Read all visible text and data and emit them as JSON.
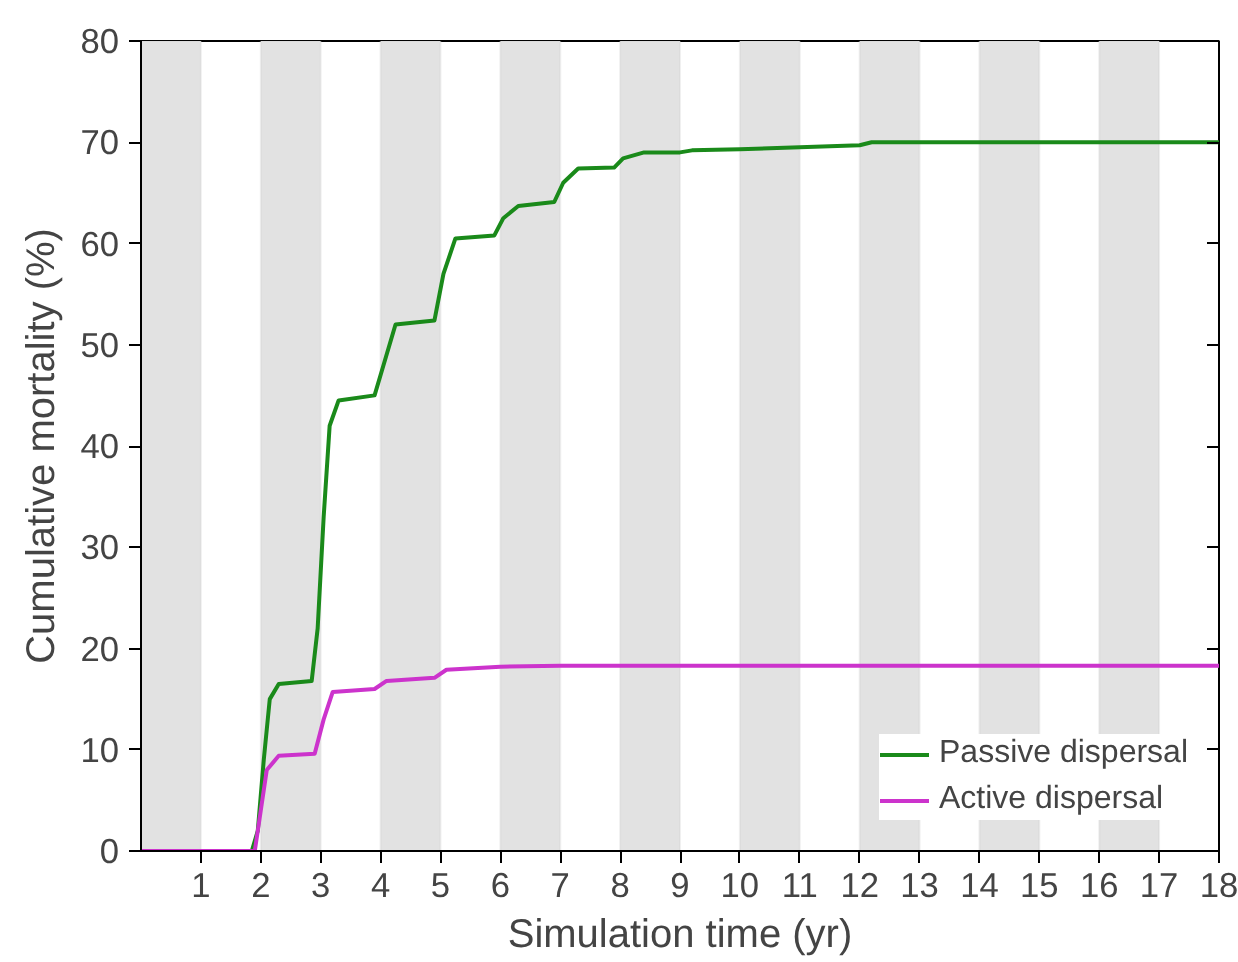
{
  "chart_data": {
    "type": "line",
    "xlabel": "Simulation time (yr)",
    "ylabel": "Cumulative mortality (%)",
    "xlim": [
      0,
      18
    ],
    "xticks": [
      1,
      2,
      3,
      4,
      5,
      6,
      7,
      8,
      9,
      10,
      11,
      12,
      13,
      14,
      15,
      16,
      17,
      18
    ],
    "ylim": [
      0,
      80
    ],
    "yticks": [
      0,
      10,
      20,
      30,
      40,
      50,
      60,
      70,
      80
    ],
    "grid": false,
    "legend": "bottom right",
    "line_style": "solid",
    "bands": [
      {
        "axis": "x",
        "from": 0,
        "to": 1,
        "color": "#e2e2e2"
      },
      {
        "axis": "x",
        "from": 2,
        "to": 3,
        "color": "#e2e2e2"
      },
      {
        "axis": "x",
        "from": 4,
        "to": 5,
        "color": "#e2e2e2"
      },
      {
        "axis": "x",
        "from": 6,
        "to": 7,
        "color": "#e2e2e2"
      },
      {
        "axis": "x",
        "from": 8,
        "to": 9,
        "color": "#e2e2e2"
      },
      {
        "axis": "x",
        "from": 10,
        "to": 11,
        "color": "#e2e2e2"
      },
      {
        "axis": "x",
        "from": 12,
        "to": 13,
        "color": "#e2e2e2"
      },
      {
        "axis": "x",
        "from": 14,
        "to": 15,
        "color": "#e2e2e2"
      },
      {
        "axis": "x",
        "from": 16,
        "to": 17,
        "color": "#e2e2e2"
      }
    ],
    "series": [
      {
        "name": "Passive dispersal",
        "color": "#1a8a1a",
        "x": [
          0,
          1.85,
          1.95,
          2.05,
          2.15,
          2.3,
          2.85,
          2.95,
          3.05,
          3.15,
          3.3,
          3.9,
          4.05,
          4.25,
          4.9,
          5.05,
          5.25,
          5.9,
          6.05,
          6.3,
          6.9,
          7.05,
          7.3,
          7.9,
          8.05,
          8.4,
          9,
          9.2,
          10,
          11,
          12,
          12.2,
          14,
          18
        ],
        "values": [
          0,
          0,
          2,
          9,
          15,
          16.5,
          16.8,
          22,
          33,
          42,
          44.5,
          45,
          48,
          52,
          52.4,
          57,
          60.5,
          60.8,
          62.5,
          63.7,
          64.1,
          66,
          67.4,
          67.5,
          68.4,
          69,
          69,
          69.2,
          69.3,
          69.5,
          69.7,
          70,
          70,
          70
        ]
      },
      {
        "name": "Active dispersal",
        "color": "#cc33cc",
        "x": [
          0,
          1.9,
          2.0,
          2.1,
          2.3,
          2.9,
          3.05,
          3.2,
          3.9,
          4.1,
          4.9,
          5.1,
          6,
          7,
          18
        ],
        "values": [
          0,
          0,
          4,
          8,
          9.4,
          9.6,
          13,
          15.7,
          16,
          16.8,
          17.1,
          17.9,
          18.2,
          18.3,
          18.3
        ]
      }
    ]
  }
}
